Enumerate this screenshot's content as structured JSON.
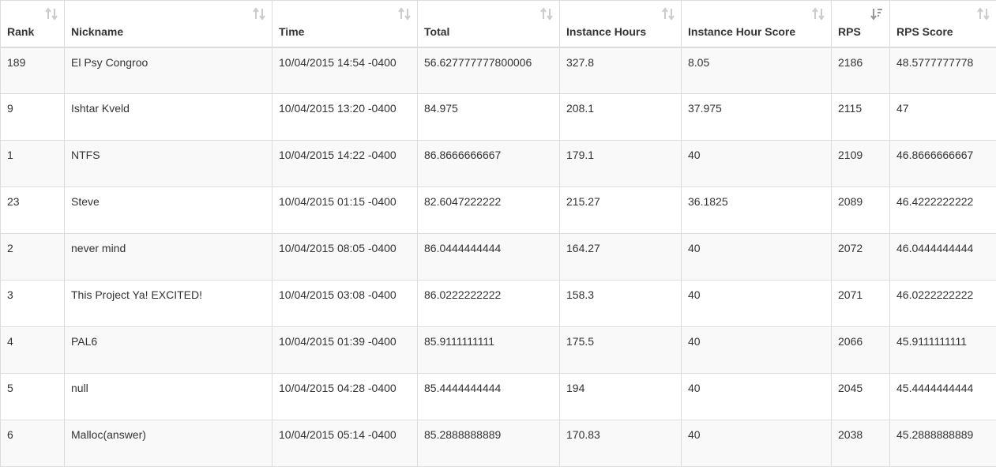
{
  "table": {
    "columns": [
      {
        "label": "Rank",
        "sort": "unsorted"
      },
      {
        "label": "Nickname",
        "sort": "unsorted"
      },
      {
        "label": "Time",
        "sort": "unsorted"
      },
      {
        "label": "Total",
        "sort": "unsorted"
      },
      {
        "label": "Instance Hours",
        "sort": "unsorted"
      },
      {
        "label": "Instance Hour Score",
        "sort": "unsorted"
      },
      {
        "label": "RPS",
        "sort": "descending"
      },
      {
        "label": "RPS Score",
        "sort": "unsorted"
      }
    ],
    "rows": [
      [
        "189",
        "El Psy Congroo",
        "10/04/2015 14:54 -0400",
        "56.627777777800006",
        "327.8",
        "8.05",
        "2186",
        "48.5777777778"
      ],
      [
        "9",
        "Ishtar Kveld",
        "10/04/2015 13:20 -0400",
        "84.975",
        "208.1",
        "37.975",
        "2115",
        "47"
      ],
      [
        "1",
        "NTFS",
        "10/04/2015 14:22 -0400",
        "86.8666666667",
        "179.1",
        "40",
        "2109",
        "46.8666666667"
      ],
      [
        "23",
        "Steve",
        "10/04/2015 01:15 -0400",
        "82.6047222222",
        "215.27",
        "36.1825",
        "2089",
        "46.4222222222"
      ],
      [
        "2",
        "never mind",
        "10/04/2015 08:05 -0400",
        "86.0444444444",
        "164.27",
        "40",
        "2072",
        "46.0444444444"
      ],
      [
        "3",
        "This Project Ya! EXCITED!",
        "10/04/2015 03:08 -0400",
        "86.0222222222",
        "158.3",
        "40",
        "2071",
        "46.0222222222"
      ],
      [
        "4",
        "PAL6",
        "10/04/2015 01:39 -0400",
        "85.9111111111",
        "175.5",
        "40",
        "2066",
        "45.9111111111"
      ],
      [
        "5",
        "null",
        "10/04/2015 04:28 -0400",
        "85.4444444444",
        "194",
        "40",
        "2045",
        "45.4444444444"
      ],
      [
        "6",
        "Malloc(answer)",
        "10/04/2015 05:14 -0400",
        "85.2888888889",
        "170.83",
        "40",
        "2038",
        "45.2888888889"
      ]
    ]
  },
  "icons": {
    "sort_unsorted": "sort-both-icon",
    "sort_descending": "sort-descending-icon"
  },
  "colors": {
    "text": "#333333",
    "border": "#dddddd",
    "striped_row": "#f9f9f9",
    "icon_inactive": "#cccccc",
    "icon_active": "#999999"
  }
}
